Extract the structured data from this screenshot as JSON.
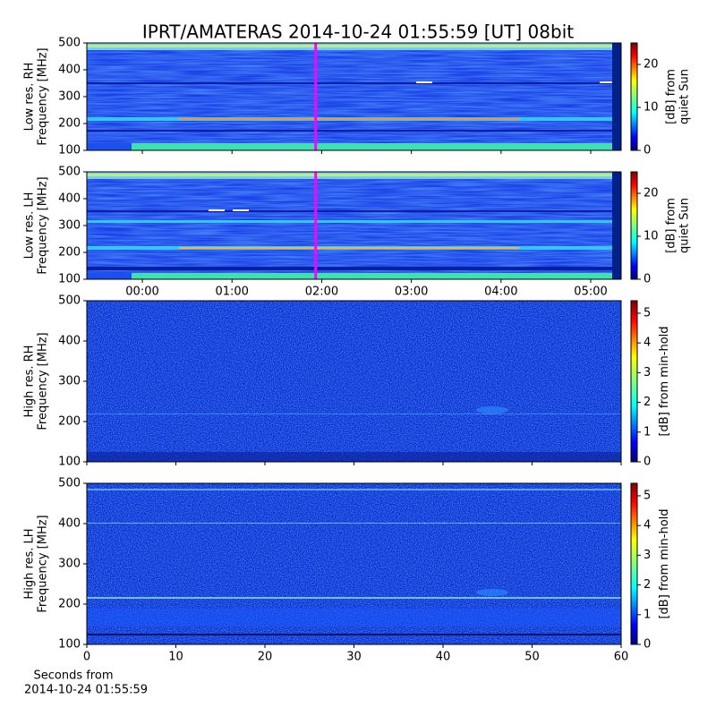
{
  "chart_data": [
    {
      "type": "heatmap",
      "title": "IPRT/AMATERAS 2014-10-24 01:55:59 [UT]   08bit",
      "ylabel": [
        "Low res. RH",
        "Frequency [MHz]"
      ],
      "ylim": [
        100,
        500
      ],
      "yticks": [
        100,
        200,
        300,
        400,
        500
      ],
      "xlim": [
        -0.619,
        5.339
      ],
      "marker": {
        "value": 1.933,
        "color": "#ff00ff"
      },
      "colorbar": {
        "lim": [
          0,
          25
        ],
        "ticks": [
          0,
          10,
          20
        ],
        "label": [
          "[dB] from",
          "quiet Sun"
        ]
      }
    },
    {
      "type": "heatmap",
      "ylabel": [
        "Low res. LH",
        "Frequency [MHz]"
      ],
      "ylim": [
        100,
        500
      ],
      "yticks": [
        100,
        200,
        300,
        400,
        500
      ],
      "xlim": [
        -0.619,
        5.339
      ],
      "xticks": [
        {
          "value": 0,
          "label": "00:00"
        },
        {
          "value": 1,
          "label": "01:00"
        },
        {
          "value": 2,
          "label": "02:00"
        },
        {
          "value": 3,
          "label": "03:00"
        },
        {
          "value": 4,
          "label": "04:00"
        },
        {
          "value": 5,
          "label": "05:00"
        }
      ],
      "marker": {
        "value": 1.933,
        "color": "#ff00ff"
      },
      "colorbar": {
        "lim": [
          0,
          25
        ],
        "ticks": [
          0,
          10,
          20
        ],
        "label": [
          "[dB] from",
          "quiet Sun"
        ]
      }
    },
    {
      "type": "heatmap",
      "ylabel": [
        "High res. RH",
        "Frequency [MHz]"
      ],
      "ylim": [
        100,
        500
      ],
      "yticks": [
        100,
        200,
        300,
        400,
        500
      ],
      "xlim": [
        0,
        60
      ],
      "colorbar": {
        "lim": [
          0,
          5.42
        ],
        "ticks": [
          0,
          1,
          2,
          3,
          4,
          5
        ],
        "label": [
          "[dB] from min-hold"
        ]
      }
    },
    {
      "type": "heatmap",
      "ylabel": [
        "High res. LH",
        "Frequency [MHz]"
      ],
      "ylim": [
        100,
        500
      ],
      "yticks": [
        100,
        200,
        300,
        400,
        500
      ],
      "xlim": [
        0,
        60
      ],
      "xticks": [
        0,
        10,
        20,
        30,
        40,
        50,
        60
      ],
      "xlabel": [
        "Seconds from",
        "2014-10-24 01:55:59"
      ],
      "colorbar": {
        "lim": [
          0,
          5.42
        ],
        "ticks": [
          0,
          1,
          2,
          3,
          4,
          5
        ],
        "label": [
          "[dB] from min-hold"
        ]
      }
    }
  ]
}
